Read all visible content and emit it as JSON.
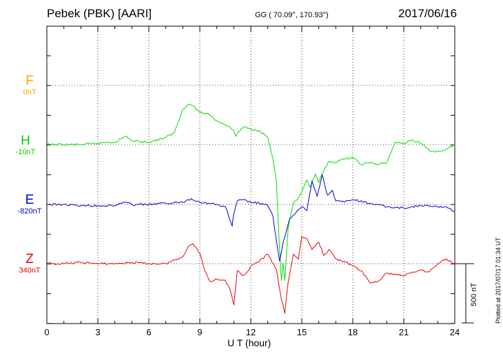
{
  "header": {
    "station": "Pebek (PBK)  [AARI]",
    "coords": "GG ( 70.09°, 170.93°)",
    "date": "2017/06/16"
  },
  "footer": {
    "plotted": "Plotted at 2017/07/17 01:34 UT"
  },
  "colors": {
    "F": "#ffa500",
    "H": "#00dd00",
    "E": "#0000cc",
    "Z": "#ee0000"
  },
  "chart_data": {
    "type": "line",
    "xlabel": "U T (hour)",
    "xlim": [
      0,
      24
    ],
    "x_ticks": [
      "0",
      "3",
      "6",
      "9",
      "12",
      "15",
      "18",
      "21",
      "24"
    ],
    "scale_label": "500 nT",
    "grid": true,
    "series": [
      {
        "name": "F",
        "offset": "0nT",
        "values": []
      },
      {
        "name": "H",
        "offset": "-10nT",
        "x": [
          0,
          1,
          2,
          3,
          3.5,
          4,
          4.5,
          4.7,
          5,
          6,
          7,
          7.5,
          8,
          8.3,
          8.6,
          9,
          9.5,
          10,
          10.5,
          11,
          11.1,
          11.3,
          11.6,
          12,
          12.5,
          13,
          13.3,
          13.5,
          13.7,
          13.8,
          13.9,
          14,
          14.2,
          14.5,
          14.8,
          15,
          15.3,
          15.5,
          15.8,
          16,
          16.3,
          16.6,
          17,
          17.5,
          18,
          18.5,
          19,
          19.5,
          20,
          20.5,
          21,
          21.5,
          22,
          22.5,
          23,
          23.5,
          24
        ],
        "values": [
          0,
          0,
          0,
          10,
          20,
          20,
          60,
          70,
          30,
          20,
          60,
          100,
          300,
          340,
          330,
          270,
          260,
          200,
          170,
          120,
          70,
          110,
          150,
          130,
          120,
          60,
          -120,
          -300,
          -900,
          -1150,
          -1000,
          -1150,
          -700,
          -500,
          -450,
          -400,
          -300,
          -360,
          -250,
          -320,
          -220,
          -140,
          -150,
          -120,
          -110,
          -170,
          -150,
          -170,
          -150,
          20,
          10,
          40,
          10,
          -50,
          -60,
          -40,
          0
        ]
      },
      {
        "name": "E",
        "offset": "-820nT",
        "x": [
          0,
          1,
          2,
          3,
          4,
          4.5,
          5,
          6,
          7,
          8,
          8.5,
          9,
          9.5,
          10,
          10.5,
          10.9,
          11,
          11.2,
          11.5,
          12,
          12.5,
          13,
          13.3,
          13.5,
          13.7,
          13.9,
          14.1,
          14.3,
          14.6,
          15,
          15.3,
          15.6,
          15.9,
          16.2,
          16.5,
          16.8,
          17,
          17.5,
          18,
          19,
          20,
          21,
          22,
          23,
          23.5,
          24
        ],
        "values": [
          0,
          0,
          -10,
          -10,
          -10,
          20,
          0,
          0,
          10,
          20,
          50,
          20,
          10,
          0,
          -20,
          -180,
          -80,
          30,
          40,
          20,
          10,
          -10,
          -100,
          -300,
          -480,
          -320,
          -220,
          -120,
          -80,
          -20,
          -50,
          200,
          70,
          250,
          80,
          120,
          30,
          20,
          40,
          10,
          -20,
          -30,
          -10,
          -20,
          -20,
          -60
        ]
      },
      {
        "name": "Z",
        "offset": "340nT",
        "x": [
          0,
          1,
          2,
          3,
          4,
          5,
          6,
          7,
          8,
          8.3,
          8.6,
          9,
          9.3,
          9.6,
          10,
          10.5,
          10.8,
          11,
          11.2,
          11.5,
          11.8,
          12,
          12.5,
          13,
          13.5,
          13.8,
          14,
          14.2,
          14.5,
          14.8,
          15,
          15.3,
          15.6,
          16,
          16.3,
          16.6,
          17,
          17.5,
          18,
          18.5,
          19,
          19.5,
          20,
          21,
          22,
          22.5,
          23,
          23.5,
          24
        ],
        "values": [
          0,
          0,
          10,
          0,
          0,
          10,
          0,
          0,
          60,
          140,
          170,
          90,
          -60,
          -150,
          -130,
          -140,
          -230,
          -350,
          -60,
          -100,
          -70,
          -20,
          20,
          80,
          -50,
          -300,
          -420,
          -150,
          80,
          40,
          230,
          210,
          120,
          180,
          70,
          120,
          40,
          20,
          -20,
          -60,
          -160,
          -150,
          -80,
          -100,
          -50,
          -70,
          0,
          40,
          0
        ]
      }
    ]
  }
}
